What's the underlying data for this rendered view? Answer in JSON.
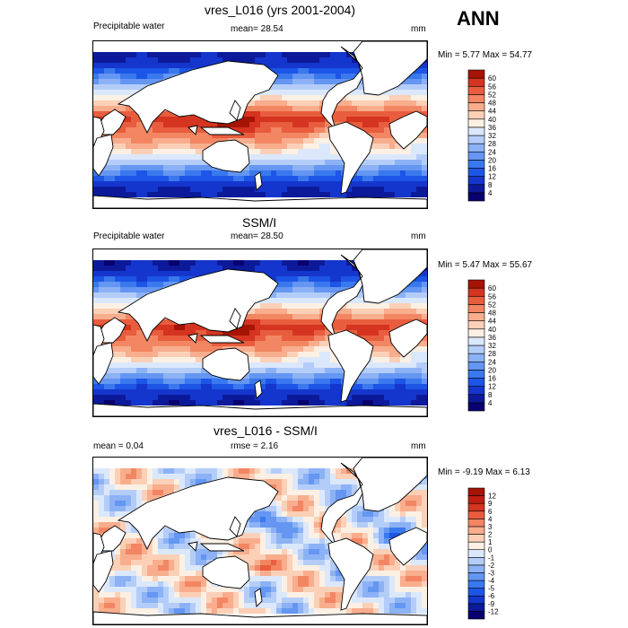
{
  "season_label": "ANN",
  "panels": [
    {
      "title": "vres_L016 (yrs 2001-2004)",
      "left_label": "Precipitable water",
      "center_label": "mean=  28.54",
      "units": "mm",
      "minmax": "Min =   5.77 Max =  54.77"
    },
    {
      "title": "SSM/I",
      "left_label": "Precipitable water",
      "center_label": "mean=  28.50",
      "units": "mm",
      "minmax": "Min =   5.47 Max =  55.67"
    },
    {
      "title": "vres_L016 - SSM/I",
      "left_label": "mean =   0.04",
      "center_label": "rmse =   2.16",
      "units": "mm",
      "minmax": "Min =  -9.19 Max =   6.13"
    }
  ],
  "chart_data": [
    {
      "type": "heatmap",
      "title": "vres_L016 (yrs 2001-2004)",
      "variable": "Precipitable water",
      "units": "mm",
      "mean": 28.54,
      "min": 5.77,
      "max": 54.77,
      "colorbar_levels": [
        4,
        8,
        12,
        16,
        20,
        24,
        28,
        32,
        36,
        40,
        44,
        48,
        52,
        56,
        60
      ],
      "colors": [
        "#08006e",
        "#0c1a9a",
        "#1536cc",
        "#1d55e6",
        "#3a78ee",
        "#6496f2",
        "#8cb2f5",
        "#b4cdf8",
        "#dbe8fb",
        "#fcf0e4",
        "#fbd0b7",
        "#f8ad8d",
        "#f28663",
        "#e85d3e",
        "#d43420",
        "#a61406"
      ]
    },
    {
      "type": "heatmap",
      "title": "SSM/I",
      "variable": "Precipitable water",
      "units": "mm",
      "mean": 28.5,
      "min": 5.47,
      "max": 55.67,
      "colorbar_levels": [
        4,
        8,
        12,
        16,
        20,
        24,
        28,
        32,
        36,
        40,
        44,
        48,
        52,
        56,
        60
      ],
      "colors": [
        "#08006e",
        "#0c1a9a",
        "#1536cc",
        "#1d55e6",
        "#3a78ee",
        "#6496f2",
        "#8cb2f5",
        "#b4cdf8",
        "#dbe8fb",
        "#fcf0e4",
        "#fbd0b7",
        "#f8ad8d",
        "#f28663",
        "#e85d3e",
        "#d43420",
        "#a61406"
      ]
    },
    {
      "type": "heatmap",
      "title": "vres_L016 - SSM/I",
      "units": "mm",
      "mean": 0.04,
      "rmse": 2.16,
      "min": -9.19,
      "max": 6.13,
      "colorbar_levels": [
        -12,
        -9,
        -6,
        -5,
        -4,
        -3,
        -2,
        -1,
        0,
        1,
        2,
        3,
        4,
        6,
        9,
        12
      ],
      "colors": [
        "#08006e",
        "#0c1a9a",
        "#1536cc",
        "#1d55e6",
        "#3a78ee",
        "#6496f2",
        "#8cb2f5",
        "#b4cdf8",
        "#dbe8fb",
        "#fcf0e4",
        "#fbd0b7",
        "#f8ad8d",
        "#f28663",
        "#e85d3e",
        "#d43420",
        "#c01e10",
        "#a61406"
      ]
    }
  ]
}
